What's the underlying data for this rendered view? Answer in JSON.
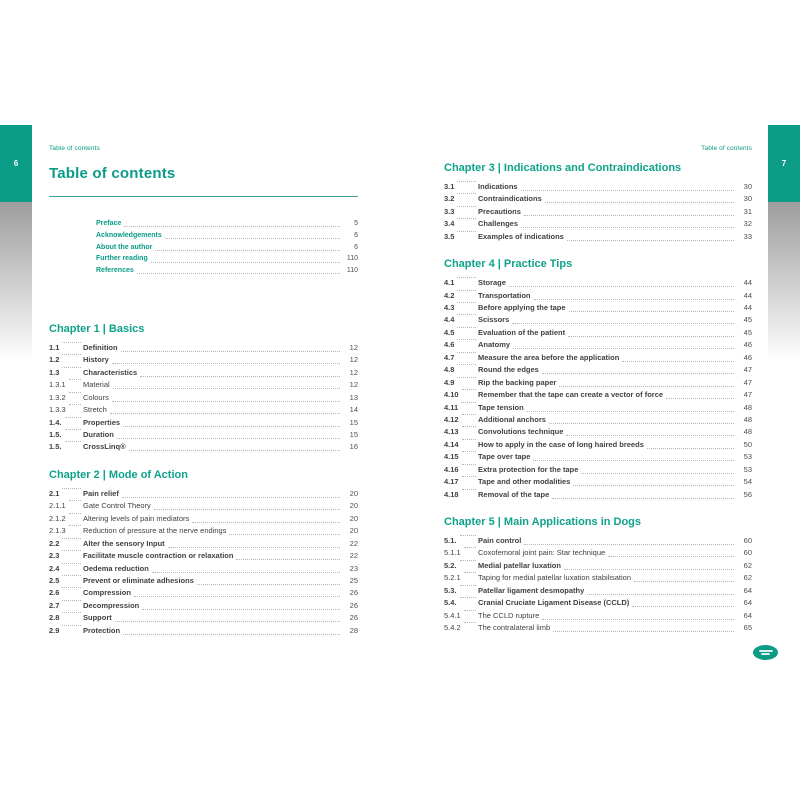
{
  "colors": {
    "teal": "#0a9c87",
    "body_text": "#3e4244",
    "dot_leader": "#b4b8b9",
    "page_number_text": "#4a4e50",
    "shade_gray": "#9d9d9d"
  },
  "left_page": {
    "page_tab": "6",
    "running_header": "Table of contents",
    "title": "Table of contents",
    "front_matter": [
      {
        "label": "Preface",
        "page": "5"
      },
      {
        "label": "Acknowledgements",
        "page": "6"
      },
      {
        "label": "About the author",
        "page": "6"
      },
      {
        "label": "Further reading",
        "page": "110"
      },
      {
        "label": "References",
        "page": "110"
      }
    ],
    "sections": [
      {
        "heading": "Chapter 1 | Basics",
        "items": [
          {
            "num": "1.1",
            "title": "Definition",
            "page": "12",
            "bold": true
          },
          {
            "num": "1.2",
            "title": "History",
            "page": "12",
            "bold": true
          },
          {
            "num": "1.3",
            "title": "Characteristics",
            "page": "12",
            "bold": true
          },
          {
            "num": "1.3.1",
            "title": "Material",
            "page": "12",
            "bold": false
          },
          {
            "num": "1.3.2",
            "title": "Colours",
            "page": "13",
            "bold": false
          },
          {
            "num": "1.3.3",
            "title": "Stretch",
            "page": "14",
            "bold": false
          },
          {
            "num": "1.4.",
            "title": "Properties",
            "page": "15",
            "bold": true
          },
          {
            "num": "1.5.",
            "title": "Duration",
            "page": "15",
            "bold": true
          },
          {
            "num": "1.5.",
            "title": "CrossLinq®",
            "page": "16",
            "bold": true
          }
        ]
      },
      {
        "heading": "Chapter 2 | Mode of Action",
        "items": [
          {
            "num": "2.1",
            "title": "Pain relief",
            "page": "20",
            "bold": true
          },
          {
            "num": "2.1.1",
            "title": "Gate Control Theory",
            "page": "20",
            "bold": false
          },
          {
            "num": "2.1.2",
            "title": "Altering levels of pain mediators",
            "page": "20",
            "bold": false
          },
          {
            "num": "2.1.3",
            "title": "Reduction of pressure at the nerve endings",
            "page": "20",
            "bold": false
          },
          {
            "num": "2.2",
            "title": "Alter the sensory Input",
            "page": "22",
            "bold": true
          },
          {
            "num": "2.3",
            "title": "Facilitate muscle contraction or relaxation",
            "page": "22",
            "bold": true
          },
          {
            "num": "2.4",
            "title": "Oedema reduction",
            "page": "23",
            "bold": true
          },
          {
            "num": "2.5",
            "title": "Prevent or eliminate adhesions",
            "page": "25",
            "bold": true
          },
          {
            "num": "2.6",
            "title": "Compression",
            "page": "26",
            "bold": true
          },
          {
            "num": "2.7",
            "title": "Decompression",
            "page": "26",
            "bold": true
          },
          {
            "num": "2.8",
            "title": "Support",
            "page": "26",
            "bold": true
          },
          {
            "num": "2.9",
            "title": "Protection",
            "page": "28",
            "bold": true
          }
        ]
      }
    ]
  },
  "right_page": {
    "page_tab": "7",
    "running_header": "Table of contents",
    "sections": [
      {
        "heading": "Chapter 3 | Indications and Contraindications",
        "items": [
          {
            "num": "3.1",
            "title": "Indications",
            "page": "30",
            "bold": true
          },
          {
            "num": "3.2",
            "title": "Contraindications",
            "page": "30",
            "bold": true
          },
          {
            "num": "3.3",
            "title": "Precautions",
            "page": "31",
            "bold": true
          },
          {
            "num": "3.4",
            "title": "Challenges",
            "page": "32",
            "bold": true
          },
          {
            "num": "3.5",
            "title": "Examples of indications",
            "page": "33",
            "bold": true
          }
        ]
      },
      {
        "heading": "Chapter 4 | Practice Tips",
        "items": [
          {
            "num": "4.1",
            "title": "Storage",
            "page": "44",
            "bold": true
          },
          {
            "num": "4.2",
            "title": "Transportation",
            "page": "44",
            "bold": true
          },
          {
            "num": "4.3",
            "title": "Before applying the tape",
            "page": "44",
            "bold": true
          },
          {
            "num": "4.4",
            "title": "Scissors",
            "page": "45",
            "bold": true
          },
          {
            "num": "4.5",
            "title": "Evaluation of the patient",
            "page": "45",
            "bold": true
          },
          {
            "num": "4.6",
            "title": "Anatomy",
            "page": "46",
            "bold": true
          },
          {
            "num": "4.7",
            "title": "Measure the area before the application",
            "page": "46",
            "bold": true
          },
          {
            "num": "4.8",
            "title": "Round the edges",
            "page": "47",
            "bold": true
          },
          {
            "num": "4.9",
            "title": "Rip the backing paper",
            "page": "47",
            "bold": true
          },
          {
            "num": "4.10",
            "title": "Remember that the tape can create a vector of force",
            "page": "47",
            "bold": true
          },
          {
            "num": "4.11",
            "title": "Tape tension",
            "page": "48",
            "bold": true
          },
          {
            "num": "4.12",
            "title": "Additional anchors",
            "page": "48",
            "bold": true
          },
          {
            "num": "4.13",
            "title": "Convolutions technique",
            "page": "48",
            "bold": true
          },
          {
            "num": "4.14",
            "title": "How to apply in the case of long haired breeds",
            "page": "50",
            "bold": true
          },
          {
            "num": "4.15",
            "title": "Tape over tape",
            "page": "53",
            "bold": true
          },
          {
            "num": "4.16",
            "title": "Extra protection for the tape",
            "page": "53",
            "bold": true
          },
          {
            "num": "4.17",
            "title": "Tape and other modalities",
            "page": "54",
            "bold": true
          },
          {
            "num": "4.18",
            "title": "Removal of the tape",
            "page": "56",
            "bold": true
          }
        ]
      },
      {
        "heading": "Chapter 5 | Main Applications in Dogs",
        "items": [
          {
            "num": "5.1.",
            "title": "Pain control",
            "page": "60",
            "bold": true
          },
          {
            "num": "5.1.1",
            "title": "Coxofemoral joint pain: Star technique",
            "page": "60",
            "bold": false
          },
          {
            "num": "5.2.",
            "title": "Medial patellar luxation",
            "page": "62",
            "bold": true
          },
          {
            "num": "5.2.1",
            "title": "Taping for medial patellar luxation stabilisation",
            "page": "62",
            "bold": false
          },
          {
            "num": "5.3.",
            "title": "Patellar ligament desmopathy",
            "page": "64",
            "bold": true
          },
          {
            "num": "5.4.",
            "title": "Cranial Cruciate Ligament Disease (CCLD)",
            "page": "64",
            "bold": true
          },
          {
            "num": "5.4.1",
            "title": "The CCLD rupture",
            "page": "64",
            "bold": false
          },
          {
            "num": "5.4.2",
            "title": "The contralateral limb",
            "page": "65",
            "bold": false
          }
        ]
      }
    ]
  }
}
